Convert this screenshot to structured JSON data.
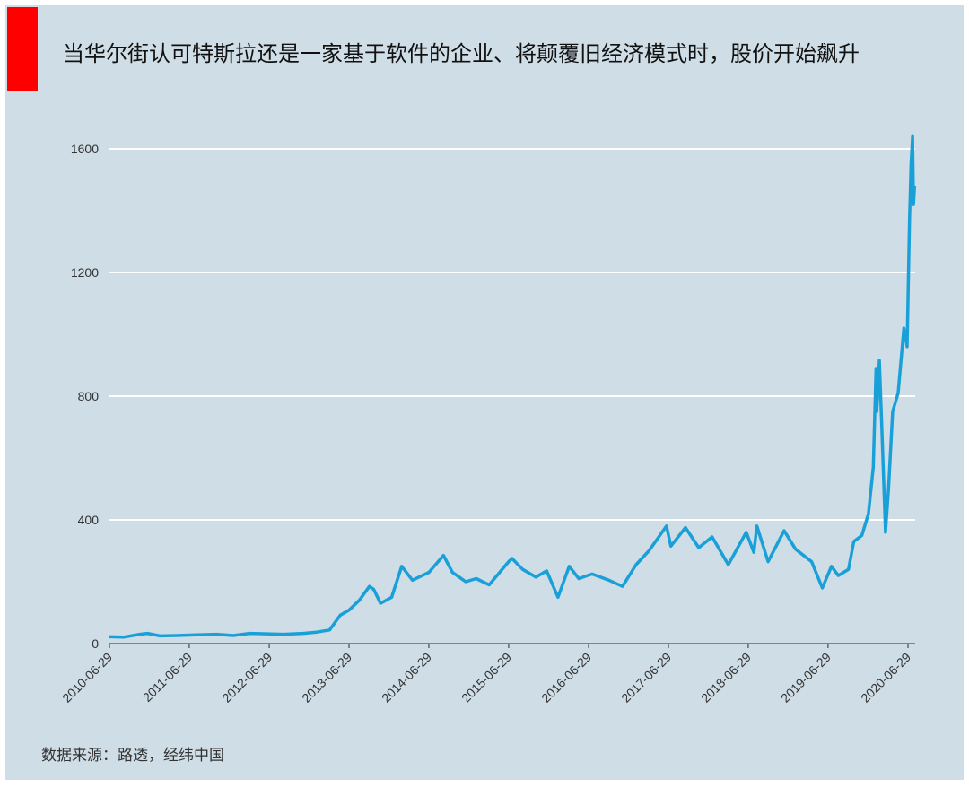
{
  "title": "当华尔街认可特斯拉还是一家基于软件的企业、将颠覆旧经济模式时，股价开始飙升",
  "source": "数据来源：路透，经纬中国",
  "colors": {
    "line": "#1aa0d8",
    "background": "#cfdde6",
    "accent": "#ff0000",
    "grid": "#ffffff"
  },
  "chart_data": {
    "type": "line",
    "title": "当华尔街认可特斯拉还是一家基于软件的企业、将颠覆旧经济模式时，股价开始飙升",
    "xlabel": "",
    "ylabel": "",
    "ylim": [
      0,
      1650
    ],
    "yticks": [
      "0",
      "400",
      "800",
      "1200",
      "1600"
    ],
    "xticks": [
      "2010-06-29",
      "2011-06-29",
      "2012-06-29",
      "2013-06-29",
      "2014-06-29",
      "2015-06-29",
      "2016-06-29",
      "2017-06-29",
      "2018-06-29",
      "2019-06-29",
      "2020-06-29"
    ],
    "grid": "horizontal",
    "series": [
      {
        "points": [
          [
            "2010-06-29",
            22
          ],
          [
            "2010-09-01",
            21
          ],
          [
            "2010-11-15",
            30
          ],
          [
            "2010-12-20",
            33
          ],
          [
            "2011-02-15",
            25
          ],
          [
            "2011-05-01",
            26
          ],
          [
            "2011-08-01",
            28
          ],
          [
            "2011-11-01",
            30
          ],
          [
            "2012-01-15",
            26
          ],
          [
            "2012-04-01",
            33
          ],
          [
            "2012-06-01",
            32
          ],
          [
            "2012-09-01",
            30
          ],
          [
            "2012-12-01",
            33
          ],
          [
            "2013-02-01",
            37
          ],
          [
            "2013-04-01",
            44
          ],
          [
            "2013-05-20",
            92
          ],
          [
            "2013-06-29",
            108
          ],
          [
            "2013-08-15",
            140
          ],
          [
            "2013-09-30",
            185
          ],
          [
            "2013-10-20",
            175
          ],
          [
            "2013-11-20",
            130
          ],
          [
            "2014-01-10",
            150
          ],
          [
            "2014-02-25",
            250
          ],
          [
            "2014-04-15",
            205
          ],
          [
            "2014-06-29",
            230
          ],
          [
            "2014-09-04",
            285
          ],
          [
            "2014-10-15",
            230
          ],
          [
            "2014-12-15",
            200
          ],
          [
            "2015-02-01",
            210
          ],
          [
            "2015-04-01",
            190
          ],
          [
            "2015-06-29",
            265
          ],
          [
            "2015-07-15",
            275
          ],
          [
            "2015-09-01",
            240
          ],
          [
            "2015-11-01",
            215
          ],
          [
            "2015-12-20",
            235
          ],
          [
            "2016-02-10",
            150
          ],
          [
            "2016-04-01",
            250
          ],
          [
            "2016-05-15",
            210
          ],
          [
            "2016-07-15",
            225
          ],
          [
            "2016-09-30",
            205
          ],
          [
            "2016-12-01",
            185
          ],
          [
            "2017-02-01",
            255
          ],
          [
            "2017-04-01",
            300
          ],
          [
            "2017-06-20",
            380
          ],
          [
            "2017-07-10",
            315
          ],
          [
            "2017-09-15",
            375
          ],
          [
            "2017-11-15",
            310
          ],
          [
            "2018-01-15",
            345
          ],
          [
            "2018-03-30",
            255
          ],
          [
            "2018-06-20",
            360
          ],
          [
            "2018-07-25",
            295
          ],
          [
            "2018-08-08",
            380
          ],
          [
            "2018-09-28",
            265
          ],
          [
            "2018-12-10",
            365
          ],
          [
            "2019-02-01",
            305
          ],
          [
            "2019-04-15",
            265
          ],
          [
            "2019-06-03",
            180
          ],
          [
            "2019-07-15",
            250
          ],
          [
            "2019-08-15",
            220
          ],
          [
            "2019-10-01",
            240
          ],
          [
            "2019-10-25",
            330
          ],
          [
            "2019-12-01",
            350
          ],
          [
            "2019-12-31",
            420
          ],
          [
            "2020-01-22",
            570
          ],
          [
            "2020-02-04",
            890
          ],
          [
            "2020-02-07",
            750
          ],
          [
            "2020-02-19",
            915
          ],
          [
            "2020-03-01",
            700
          ],
          [
            "2020-03-18",
            360
          ],
          [
            "2020-04-01",
            500
          ],
          [
            "2020-04-20",
            750
          ],
          [
            "2020-05-15",
            810
          ],
          [
            "2020-06-10",
            1020
          ],
          [
            "2020-06-25",
            960
          ],
          [
            "2020-07-06",
            1370
          ],
          [
            "2020-07-13",
            1550
          ],
          [
            "2020-07-20",
            1640
          ],
          [
            "2020-07-24",
            1420
          ],
          [
            "2020-07-29",
            1480
          ]
        ]
      }
    ]
  }
}
